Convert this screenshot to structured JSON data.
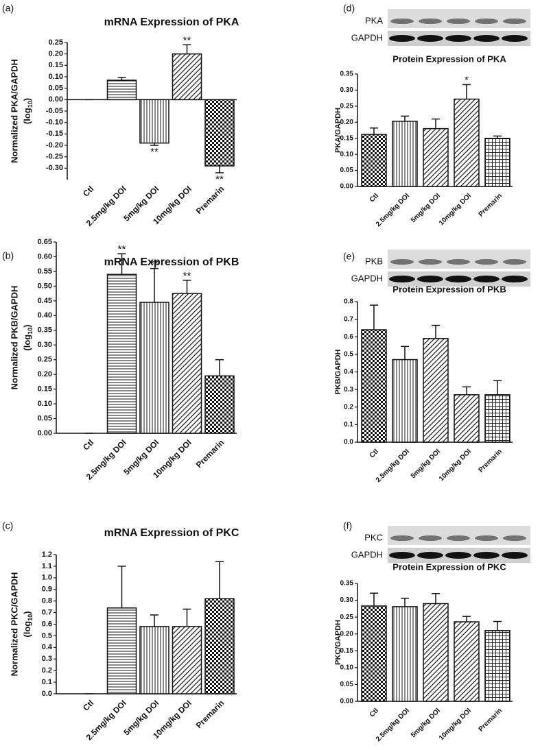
{
  "chart_data": [
    {
      "type": "bar",
      "panel_label": "(a)",
      "title": "mRNA Expression of PKA",
      "ylabel": [
        "Normalized PKA/GAPDH",
        "(log",
        "10",
        ")"
      ],
      "categories": [
        "Ctl",
        "2.5mg/kg DOI",
        "5mg/kg DOI",
        "10mg/kg DOI",
        "Premarin"
      ],
      "values": [
        0,
        0.085,
        -0.19,
        0.2,
        -0.29
      ],
      "errors": [
        0,
        0.012,
        0.01,
        0.04,
        0.03
      ],
      "significance": [
        null,
        null,
        "**",
        "**",
        "**"
      ],
      "patterns": [
        "checker",
        "hlines",
        "vlines",
        "diag",
        "checker"
      ],
      "ylim": [
        -0.35,
        0.25
      ],
      "yticks": [
        0.25,
        {
          "value": 0.2,
          "label": "0.20"
        },
        0.15,
        {
          "value": 0.1,
          "label": "0.10"
        },
        0.05,
        {
          "value": 0,
          "label": "0.00"
        },
        -0.05,
        {
          "value": -0.1,
          "label": "-0.10"
        },
        -0.15,
        {
          "value": -0.2,
          "label": "-0.20"
        },
        -0.25,
        {
          "value": -0.3,
          "label": "-0.30"
        }
      ]
    },
    {
      "type": "bar",
      "panel_label": "(b)",
      "title": "mRNA Expression of PKB",
      "ylabel": [
        "Normalized PKB/GAPDH",
        "(log",
        "10",
        ")"
      ],
      "categories": [
        "Ctl",
        "2.5mg/kg DOI",
        "5mg/kg DOI",
        "10mg/kg DOI",
        "Premarin"
      ],
      "values": [
        0,
        0.54,
        0.445,
        0.475,
        0.195
      ],
      "errors": [
        0,
        0.07,
        0.115,
        0.045,
        0.055
      ],
      "significance": [
        null,
        "**",
        "**",
        "**",
        null
      ],
      "patterns": [
        "checker",
        "hlines",
        "vlines",
        "diag",
        "checker"
      ],
      "ylim": [
        0,
        0.65
      ],
      "yticks": [
        {
          "value": 0,
          "label": "0.00"
        },
        0.05,
        {
          "value": 0.1,
          "label": "0.10"
        },
        0.15,
        {
          "value": 0.2,
          "label": "0.20"
        },
        0.25,
        {
          "value": 0.3,
          "label": "0.30"
        },
        0.35,
        {
          "value": 0.4,
          "label": "0.40"
        },
        0.45,
        {
          "value": 0.5,
          "label": "0.50"
        },
        0.55,
        {
          "value": 0.6,
          "label": "0.60"
        },
        0.65
      ]
    },
    {
      "type": "bar",
      "panel_label": "(c)",
      "title": "mRNA Expression of PKC",
      "ylabel": [
        "Normalized PKC/GAPDH",
        "(log",
        "10",
        ")"
      ],
      "categories": [
        "Ctl",
        "2.5mg/kg DOI",
        "5mg/kg DOI",
        "10mg/kg DOI",
        "Premarin"
      ],
      "values": [
        0,
        0.74,
        0.58,
        0.58,
        0.82
      ],
      "errors": [
        0,
        0.36,
        0.1,
        0.15,
        0.32
      ],
      "significance": [
        null,
        null,
        null,
        null,
        null
      ],
      "patterns": [
        "checker",
        "hlines",
        "vlines",
        "diag",
        "checker"
      ],
      "ylim": [
        0,
        1.2
      ],
      "yticks": [
        {
          "value": 0,
          "label": "0.0"
        },
        0.1,
        0.2,
        0.3,
        0.4,
        0.5,
        0.6,
        0.7,
        0.8,
        0.9,
        {
          "value": 1,
          "label": "1.0"
        },
        1.1,
        1.2
      ]
    },
    {
      "type": "bar",
      "panel_label": "(d)",
      "title": "Protein Expression of PKA",
      "blot_labels": [
        "PKA",
        "GAPDH"
      ],
      "ylabel": [
        "PKA/GAPDH"
      ],
      "categories": [
        "Ctl",
        "2.5mg/kg DOI",
        "5mg/kg DOI",
        "10mg/kg DOI",
        "Premarin"
      ],
      "values": [
        0.162,
        0.203,
        0.18,
        0.272,
        0.15
      ],
      "errors": [
        0.02,
        0.016,
        0.03,
        0.045,
        0.007
      ],
      "significance": [
        null,
        null,
        null,
        "*",
        null
      ],
      "patterns": [
        "checker",
        "vlines",
        "diag",
        "diag",
        "grid"
      ],
      "ylim": [
        0,
        0.35
      ],
      "yticks": [
        {
          "value": 0,
          "label": "0.00"
        },
        0.05,
        {
          "value": 0.1,
          "label": "0.10"
        },
        0.15,
        {
          "value": 0.2,
          "label": "0.20"
        },
        0.25,
        {
          "value": 0.3,
          "label": "0.30"
        },
        0.35
      ]
    },
    {
      "type": "bar",
      "panel_label": "(e)",
      "title": "Protein Expression of PKB",
      "blot_labels": [
        "PKB",
        "GAPDH"
      ],
      "ylabel": [
        "PKB/GAPDH"
      ],
      "categories": [
        "Ctl",
        "2.5mg/kg DOI",
        "5mg/kg DOI",
        "10mg/kg DOI",
        "Premarin"
      ],
      "values": [
        0.64,
        0.47,
        0.59,
        0.27,
        0.27
      ],
      "errors": [
        0.14,
        0.075,
        0.075,
        0.045,
        0.08
      ],
      "significance": [
        null,
        null,
        null,
        null,
        null
      ],
      "patterns": [
        "checker",
        "vlines",
        "diag",
        "diag",
        "grid"
      ],
      "ylim": [
        0,
        0.8
      ],
      "yticks": [
        {
          "value": 0,
          "label": "0.0"
        },
        0.1,
        0.2,
        0.3,
        0.4,
        0.5,
        0.6,
        0.7,
        0.8
      ]
    },
    {
      "type": "bar",
      "panel_label": "(f)",
      "title": "Protein Expression of PKC",
      "blot_labels": [
        "PKC",
        "GAPDH"
      ],
      "ylabel": [
        "PKC/GAPDH"
      ],
      "categories": [
        "Ctl",
        "2.5mg/kg DOI",
        "5mg/kg DOI",
        "10mg/kg DOI",
        "Premarin"
      ],
      "values": [
        0.283,
        0.281,
        0.29,
        0.236,
        0.21
      ],
      "errors": [
        0.038,
        0.025,
        0.03,
        0.016,
        0.027
      ],
      "significance": [
        null,
        null,
        null,
        null,
        null
      ],
      "patterns": [
        "checker",
        "vlines",
        "diag",
        "diag",
        "grid"
      ],
      "ylim": [
        0,
        0.35
      ],
      "yticks": [
        {
          "value": 0,
          "label": "0.00"
        },
        0.05,
        {
          "value": 0.1,
          "label": "0.10"
        },
        0.15,
        {
          "value": 0.2,
          "label": "0.20"
        },
        0.25,
        {
          "value": 0.3,
          "label": "0.30"
        },
        0.35
      ]
    }
  ]
}
